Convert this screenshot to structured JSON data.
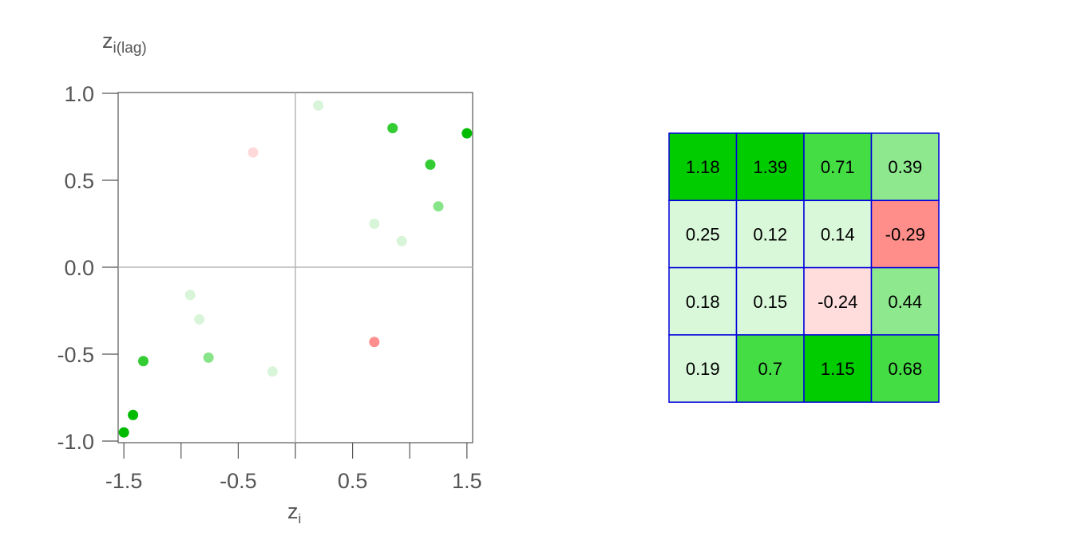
{
  "chart_data": [
    {
      "type": "scatter",
      "title": "",
      "xlabel": "z",
      "xlabel_sub": "i",
      "ylabel": "z",
      "ylabel_sub": "i(lag)",
      "xlim": [
        -1.55,
        1.55
      ],
      "ylim": [
        -1.0,
        1.0
      ],
      "xticks": [
        -1.5,
        -1.0,
        -0.5,
        0.0,
        0.5,
        1.0,
        1.5
      ],
      "xtick_labels": [
        "-1.5",
        "",
        "-0.5",
        "",
        "0.5",
        "",
        "1.5"
      ],
      "yticks": [
        -1.0,
        -0.5,
        0.0,
        0.5,
        1.0
      ],
      "ytick_labels": [
        "-1.0",
        "-0.5",
        "0.0",
        "0.5",
        "1.0"
      ],
      "reference_lines": {
        "x": 0,
        "y": 0
      },
      "points": [
        {
          "x": 0.2,
          "y": 0.93,
          "color": "#d9f5d9"
        },
        {
          "x": 0.85,
          "y": 0.8,
          "color": "#33cc33"
        },
        {
          "x": 1.5,
          "y": 0.77,
          "color": "#00bb00"
        },
        {
          "x": -0.37,
          "y": 0.66,
          "color": "#ffd9d9"
        },
        {
          "x": 1.18,
          "y": 0.59,
          "color": "#33cc33"
        },
        {
          "x": 1.25,
          "y": 0.35,
          "color": "#88e488"
        },
        {
          "x": 0.69,
          "y": 0.25,
          "color": "#d9f5d9"
        },
        {
          "x": 0.93,
          "y": 0.15,
          "color": "#d9f5d9"
        },
        {
          "x": -0.92,
          "y": -0.16,
          "color": "#d9f5d9"
        },
        {
          "x": -0.84,
          "y": -0.3,
          "color": "#d9f5d9"
        },
        {
          "x": -1.33,
          "y": -0.54,
          "color": "#33cc33"
        },
        {
          "x": -0.76,
          "y": -0.52,
          "color": "#88e488"
        },
        {
          "x": -0.2,
          "y": -0.6,
          "color": "#d9f5d9"
        },
        {
          "x": 0.69,
          "y": -0.43,
          "color": "#ff8e8e"
        },
        {
          "x": -1.42,
          "y": -0.85,
          "color": "#00bb00"
        },
        {
          "x": -1.5,
          "y": -0.95,
          "color": "#00bb00"
        }
      ]
    },
    {
      "type": "heatmap",
      "rows": [
        [
          1.18,
          1.39,
          0.71,
          0.39
        ],
        [
          0.25,
          0.12,
          0.14,
          -0.29
        ],
        [
          0.18,
          0.15,
          -0.24,
          0.44
        ],
        [
          0.19,
          0.7,
          1.15,
          0.68
        ]
      ],
      "labels": [
        [
          "1.18",
          "1.39",
          "0.71",
          "0.39"
        ],
        [
          "0.25",
          "0.12",
          "0.14",
          "-0.29"
        ],
        [
          "0.18",
          "0.15",
          "-0.24",
          "0.44"
        ],
        [
          "0.19",
          "0.7",
          "1.15",
          "0.68"
        ]
      ],
      "colors": [
        [
          "#00cc00",
          "#00cc00",
          "#44dd44",
          "#8ee88e"
        ],
        [
          "#d9f7d9",
          "#d9f7d9",
          "#d9f7d9",
          "#ff8e8a"
        ],
        [
          "#d9f7d9",
          "#d9f7d9",
          "#ffdddd",
          "#8ee88e"
        ],
        [
          "#d9f7d9",
          "#44dd44",
          "#00cc00",
          "#44dd44"
        ]
      ],
      "border_color": "#0000dd"
    }
  ]
}
